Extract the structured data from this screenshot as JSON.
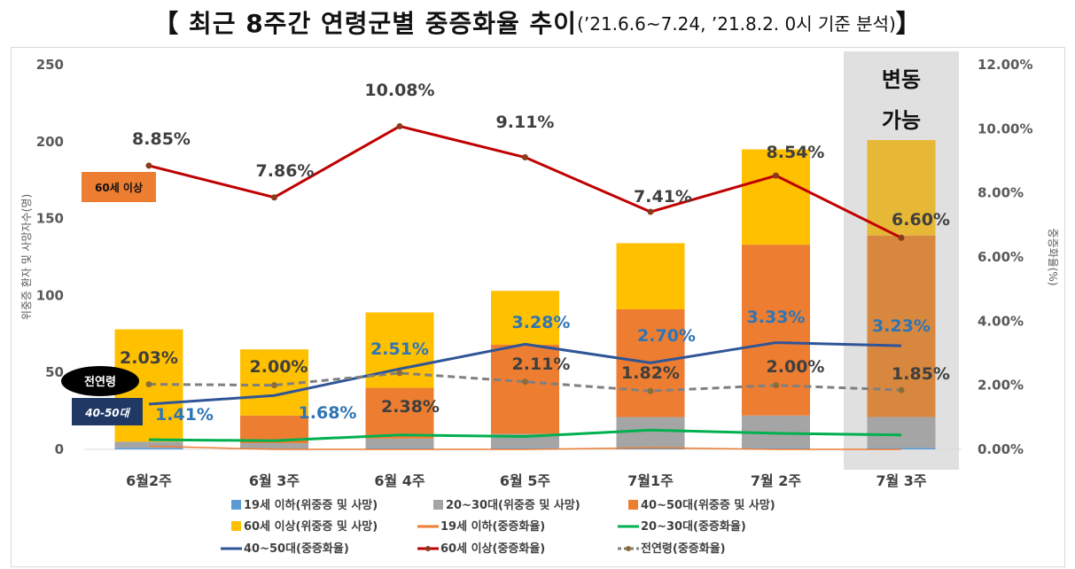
{
  "title": {
    "main": "【 최근 8주간 연령군별 중증화율 추이",
    "sub": "(’21.6.6~7.24, ’21.8.2. 0시 기준 분석)",
    "close": "】"
  },
  "chart_data": {
    "type": "bar",
    "stacked": true,
    "combo": "stacked bar + line (secondary axis)",
    "categories": [
      "6월2주",
      "6월 3주",
      "6월 4주",
      "6월 5주",
      "7월1주",
      "7월 2주",
      "7월 3주"
    ],
    "ylabel": "위중증 환자 및 사망자수(명)",
    "y2label": "중증화율(%)",
    "ylim": [
      0,
      250
    ],
    "yticks": [
      0,
      50,
      100,
      150,
      200,
      250
    ],
    "y2lim": [
      0,
      12
    ],
    "y2ticks": [
      "0.00%",
      "2.00%",
      "4.00%",
      "6.00%",
      "8.00%",
      "10.00%",
      "12.00%"
    ],
    "grid": false,
    "legend_position": "bottom",
    "bar_series": [
      {
        "name": "19세 이하(위중증 및 사망)",
        "color": "#5b9bd5",
        "values": [
          1,
          0,
          1,
          1,
          1,
          1,
          1
        ]
      },
      {
        "name": "20~30대(위중증 및 사망)",
        "color": "#a5a5a5",
        "values": [
          4,
          4,
          6,
          9,
          20,
          21,
          20
        ]
      },
      {
        "name": "40~50대(위중증 및 사망)",
        "color": "#ed7d31",
        "values": [
          0,
          18,
          33,
          58,
          70,
          111,
          118
        ]
      },
      {
        "name": "60세 이상(위중증 및 사망)",
        "color": "#ffc000",
        "values": [
          73,
          43,
          49,
          35,
          43,
          62,
          62
        ]
      }
    ],
    "line_series": [
      {
        "name": "19세 이하(중증화율)",
        "color": "#ed7d31",
        "values": [
          0.1,
          0.0,
          0.0,
          0.0,
          0.05,
          0.0,
          0.0
        ]
      },
      {
        "name": "20~30대(중증화율)",
        "color": "#00b050",
        "values": [
          0.3,
          0.27,
          0.45,
          0.4,
          0.6,
          0.5,
          0.45
        ]
      },
      {
        "name": "40~50대(중증화율)",
        "color": "#2f5597",
        "values": [
          1.41,
          1.68,
          2.51,
          3.28,
          2.7,
          3.33,
          3.23
        ],
        "labels": [
          "1.41%",
          "1.68%",
          "2.51%",
          "3.28%",
          "2.70%",
          "3.33%",
          "3.23%"
        ]
      },
      {
        "name": "60세 이상(중증화율)",
        "color": "#c00000",
        "values": [
          8.85,
          7.86,
          10.08,
          9.11,
          7.41,
          8.54,
          6.6
        ],
        "labels": [
          "8.85%",
          "7.86%",
          "10.08%",
          "9.11%",
          "7.41%",
          "8.54%",
          "6.60%"
        ]
      },
      {
        "name": "전연령(중증화율)",
        "color": "#808080",
        "dashed": true,
        "values": [
          2.03,
          2.0,
          2.38,
          2.11,
          1.82,
          2.0,
          1.85
        ],
        "labels": [
          "2.03%",
          "2.00%",
          "2.38%",
          "2.11%",
          "1.82%",
          "2.00%",
          "1.85%"
        ]
      }
    ],
    "legend_order": [
      "19세 이하(위중증 및 사망)",
      "20~30대(위중증 및 사망)",
      "40~50대(위중증 및 사망)",
      "60세 이상(위중증 및 사망)",
      "19세 이하(중증화율)",
      "20~30대(중증화율)",
      "40~50대(중증화율)",
      "60세 이상(중증화율)",
      "전연령(중증화율)"
    ],
    "annotations": {
      "variable_note": [
        "변동",
        "가능"
      ],
      "label_60": "60세 이상",
      "label_all": "전연령",
      "label_4050": "40-50대"
    }
  }
}
